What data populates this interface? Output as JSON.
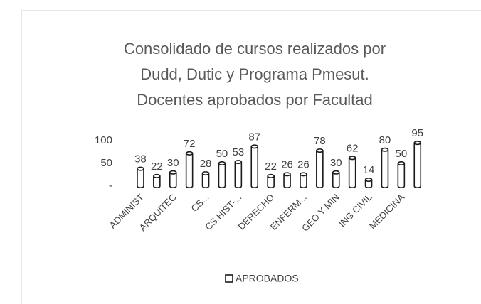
{
  "chart_data": {
    "type": "bar",
    "title": [
      "Consolidado de cursos realizados por",
      "Dudd, Dutic y Programa Pmesut.",
      "Docentes aprobados por Facultad"
    ],
    "categories": [
      "ADMINIST",
      null,
      "ARQUITEC",
      null,
      "CS...",
      null,
      "CS HIST-...",
      null,
      "DERECHO",
      null,
      "ENFERM...",
      null,
      "GEO Y MIN",
      null,
      "ING CIVIL",
      null,
      "MEDICINA",
      null
    ],
    "series": [
      {
        "name": "APROBADOS",
        "color": "#ffffff",
        "values": [
          38,
          22,
          30,
          72,
          28,
          50,
          53,
          87,
          22,
          26,
          26,
          78,
          30,
          62,
          14,
          80,
          50,
          95
        ]
      }
    ],
    "ylim": [
      0,
      100
    ],
    "yticks": [
      {
        "value": 0,
        "label": "-"
      },
      50,
      100
    ],
    "grid": false,
    "legend": "bottom"
  }
}
